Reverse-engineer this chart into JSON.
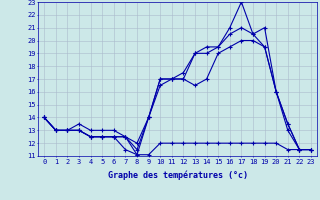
{
  "title": "",
  "xlabel": "Graphe des températures (°c)",
  "ylabel": "",
  "background_color": "#cce8e8",
  "grid_color": "#aabbcc",
  "line_color": "#0000aa",
  "xlim": [
    -0.5,
    23.5
  ],
  "ylim": [
    11,
    23
  ],
  "xticks": [
    0,
    1,
    2,
    3,
    4,
    5,
    6,
    7,
    8,
    9,
    10,
    11,
    12,
    13,
    14,
    15,
    16,
    17,
    18,
    19,
    20,
    21,
    22,
    23
  ],
  "yticks": [
    11,
    12,
    13,
    14,
    15,
    16,
    17,
    18,
    19,
    20,
    21,
    22,
    23
  ],
  "series": [
    [
      14,
      13,
      13,
      13,
      12.5,
      12.5,
      12.5,
      12.5,
      11.1,
      11.1,
      12,
      12,
      12,
      12,
      12,
      12,
      12,
      12,
      12,
      12,
      12,
      11.5,
      11.5,
      11.5
    ],
    [
      14,
      13,
      13,
      13,
      12.5,
      12.5,
      12.5,
      11.5,
      11.1,
      14,
      16.5,
      17,
      17,
      16.5,
      17,
      19,
      19.5,
      20,
      20,
      19.5,
      16,
      13,
      11.5,
      11.5
    ],
    [
      14,
      13,
      13,
      13,
      12.5,
      12.5,
      12.5,
      12.5,
      11.5,
      14,
      17,
      17,
      17,
      19,
      19,
      19.5,
      20.5,
      21,
      20.5,
      19.5,
      16,
      13.5,
      11.5,
      11.5
    ],
    [
      14,
      13,
      13,
      13.5,
      13,
      13,
      13,
      12.5,
      12,
      14,
      17,
      17,
      17.5,
      19,
      19.5,
      19.5,
      21,
      23,
      20.5,
      21,
      16,
      13.5,
      11.5,
      11.5
    ]
  ],
  "xlabel_fontsize": 6,
  "tick_fontsize": 5,
  "marker_size": 3,
  "line_width": 0.8
}
